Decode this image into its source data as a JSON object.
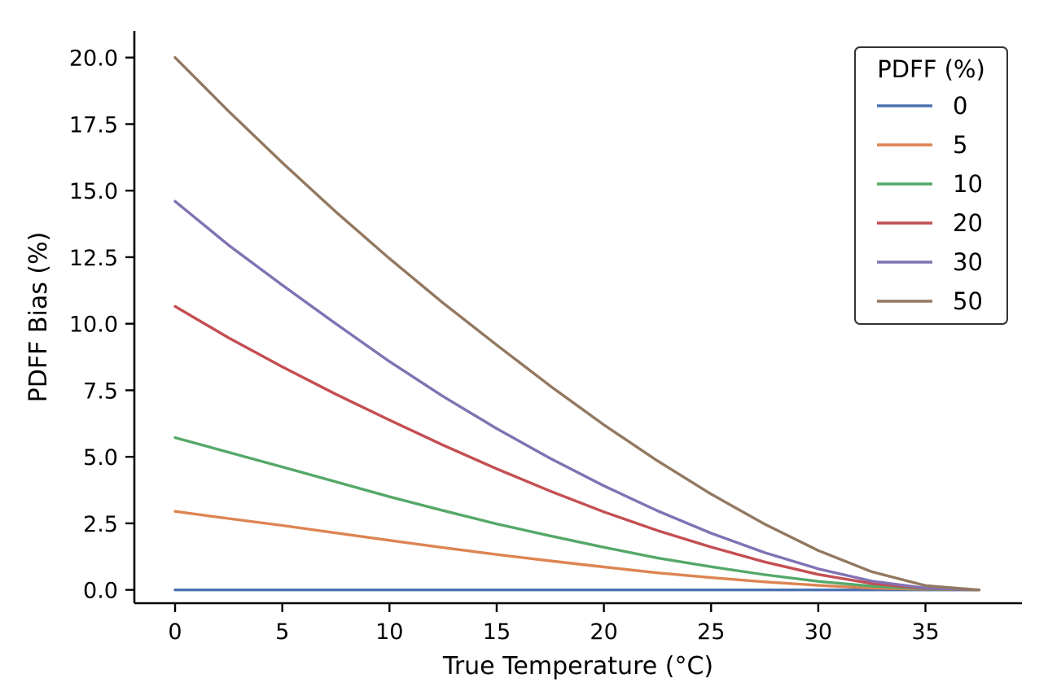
{
  "chart_data": {
    "type": "line",
    "title": "",
    "xlabel": "True Temperature (°C)",
    "ylabel": "PDFF Bias (%)",
    "xlim": [
      -1.9,
      39.5
    ],
    "ylim": [
      -0.5,
      21.0
    ],
    "xticks": [
      0,
      5,
      10,
      15,
      20,
      25,
      30,
      35
    ],
    "xtick_labels": [
      "0",
      "5",
      "10",
      "15",
      "20",
      "25",
      "30",
      "35"
    ],
    "yticks": [
      0,
      2.5,
      5,
      7.5,
      10,
      12.5,
      15,
      17.5,
      20
    ],
    "ytick_labels": [
      "0.0",
      "2.5",
      "5.0",
      "7.5",
      "10.0",
      "12.5",
      "15.0",
      "17.5",
      "20.0"
    ],
    "grid": false,
    "legend": {
      "title": "PDFF (%)",
      "location": "upper right"
    },
    "x": [
      0,
      2.5,
      5,
      7.5,
      10,
      12.5,
      15,
      17.5,
      20,
      22.5,
      25,
      27.5,
      30,
      32.5,
      35,
      37.5
    ],
    "series": [
      {
        "name": "0",
        "color": "#4C72B0",
        "values": [
          0,
          0,
          0,
          0,
          0,
          0,
          0,
          0,
          0,
          0,
          0,
          0,
          0,
          0,
          0,
          0
        ]
      },
      {
        "name": "5",
        "color": "#DD8452",
        "values": [
          2.95,
          2.68,
          2.42,
          2.14,
          1.86,
          1.59,
          1.33,
          1.09,
          0.86,
          0.64,
          0.46,
          0.3,
          0.17,
          0.07,
          0.02,
          0.0
        ]
      },
      {
        "name": "10",
        "color": "#55A868",
        "values": [
          5.72,
          5.17,
          4.62,
          4.06,
          3.5,
          2.98,
          2.48,
          2.03,
          1.6,
          1.2,
          0.87,
          0.57,
          0.32,
          0.14,
          0.03,
          0.0
        ]
      },
      {
        "name": "20",
        "color": "#C44E52",
        "values": [
          10.65,
          9.47,
          8.38,
          7.35,
          6.38,
          5.44,
          4.55,
          3.71,
          2.93,
          2.23,
          1.61,
          1.05,
          0.58,
          0.24,
          0.05,
          0.0
        ]
      },
      {
        "name": "30",
        "color": "#8172B3",
        "values": [
          14.6,
          12.95,
          11.45,
          10.0,
          8.58,
          7.27,
          6.06,
          4.94,
          3.91,
          2.97,
          2.13,
          1.4,
          0.79,
          0.33,
          0.07,
          0.0
        ]
      },
      {
        "name": "50",
        "color": "#937860",
        "values": [
          20.0,
          17.98,
          16.05,
          14.2,
          12.45,
          10.78,
          9.2,
          7.66,
          6.2,
          4.85,
          3.6,
          2.47,
          1.48,
          0.68,
          0.16,
          0.0
        ]
      }
    ]
  }
}
